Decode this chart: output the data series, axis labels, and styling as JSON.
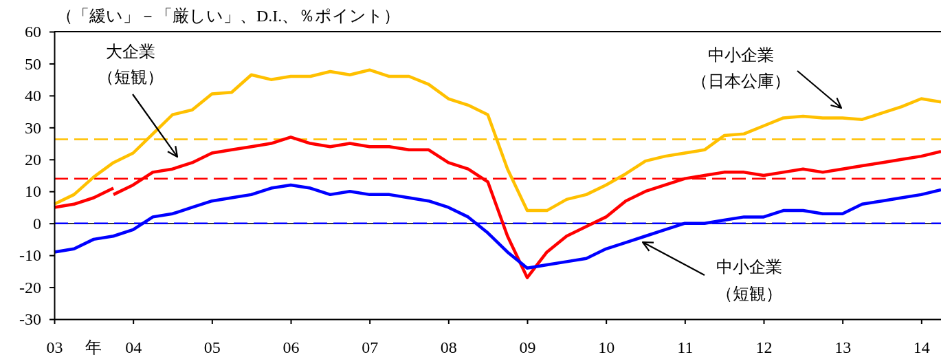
{
  "chart_data": {
    "type": "line",
    "ylabel": "（「緩い」－「厳しい」、D.I.、％ポイント）",
    "xlabel": "年",
    "xlim": [
      2003,
      2014.25
    ],
    "xticks": [
      {
        "value": 2003,
        "label": "03"
      },
      {
        "value": 2004,
        "label": "04"
      },
      {
        "value": 2005,
        "label": "05"
      },
      {
        "value": 2006,
        "label": "06"
      },
      {
        "value": 2007,
        "label": "07"
      },
      {
        "value": 2008,
        "label": "08"
      },
      {
        "value": 2009,
        "label": "09"
      },
      {
        "value": 2010,
        "label": "10"
      },
      {
        "value": 2011,
        "label": "11"
      },
      {
        "value": 2012,
        "label": "12"
      },
      {
        "value": 2013,
        "label": "13"
      },
      {
        "value": 2014,
        "label": "14"
      }
    ],
    "ylim": [
      -30,
      60
    ],
    "yticks": [
      -30,
      -20,
      -10,
      0,
      10,
      20,
      30,
      40,
      50,
      60
    ],
    "line_style": "solid",
    "x": [
      2003,
      2003.25,
      2003.5,
      2003.75,
      2004,
      2004.25,
      2004.5,
      2004.75,
      2005,
      2005.25,
      2005.5,
      2005.75,
      2006,
      2006.25,
      2006.5,
      2006.75,
      2007,
      2007.25,
      2007.5,
      2007.75,
      2008,
      2008.25,
      2008.5,
      2008.75,
      2009,
      2009.25,
      2009.5,
      2009.75,
      2010,
      2010.25,
      2010.5,
      2010.75,
      2011,
      2011.25,
      2011.5,
      2011.75,
      2012,
      2012.25,
      2012.5,
      2012.75,
      2013,
      2013.25,
      2013.5,
      2013.75,
      2014,
      2014.25
    ],
    "series": [
      {
        "name": "中小企業（日本公庫）",
        "color": "#ffc000",
        "values": [
          6,
          9,
          14.5,
          19,
          22,
          28,
          34,
          35.5,
          40.5,
          41,
          46.5,
          45,
          46,
          46,
          47.5,
          46.5,
          48,
          46,
          46,
          43.5,
          39,
          37,
          34,
          17,
          4,
          4,
          7.5,
          9,
          12,
          15.5,
          19.5,
          21,
          22,
          23,
          27.5,
          28,
          30.5,
          33,
          33.5,
          33,
          33,
          32.5,
          34.5,
          36.5,
          39,
          38
        ]
      },
      {
        "name": "大企業（短観）",
        "color": "#ff0000",
        "x": [
          2003.75,
          2004,
          2004.25,
          2004.5,
          2004.75,
          2005,
          2005.25,
          2005.5,
          2005.75,
          2006,
          2006.25,
          2006.5,
          2006.75,
          2007,
          2007.25,
          2007.5,
          2007.75,
          2008,
          2008.25,
          2008.5,
          2008.75,
          2009,
          2009.25,
          2009.5,
          2009.75,
          2010,
          2010.25,
          2010.5,
          2010.75,
          2011,
          2011.25,
          2011.5,
          2011.75,
          2012,
          2012.25,
          2012.5,
          2012.75,
          2013,
          2013.25,
          2013.5,
          2013.75,
          2014,
          2014.25
        ],
        "values": [
          9,
          12,
          16,
          17,
          19,
          22,
          23,
          24,
          25,
          27,
          25,
          24,
          25,
          24,
          24,
          23,
          23,
          19,
          17,
          13,
          -4,
          -17,
          -9,
          -4,
          -1,
          2,
          7,
          10,
          12,
          14,
          15,
          16,
          16,
          15,
          16,
          17,
          16,
          17,
          18,
          19,
          20,
          21,
          22.5
        ]
      },
      {
        "name": "中小企業（短観）",
        "color": "#0000ff",
        "values": [
          -9,
          -8,
          -5,
          -4,
          -2,
          2,
          3,
          5,
          7,
          8,
          9,
          11,
          12,
          11,
          9,
          10,
          9,
          9,
          8,
          7,
          5,
          2,
          -3,
          -9,
          -14,
          -13,
          -12,
          -11,
          -8,
          -6,
          -4,
          -2,
          0,
          0,
          1,
          2,
          2,
          4,
          4,
          3,
          3,
          6,
          7,
          8,
          9,
          10.5
        ]
      },
      {
        "color": "#ff0000",
        "x": [
          2003,
          2003.25,
          2003.5,
          2003.75
        ],
        "values": [
          5,
          6,
          8,
          11
        ]
      }
    ],
    "ref_lines": [
      {
        "axis": "y",
        "value": 26.3,
        "color": "#ffc000",
        "line_style": "dashed"
      },
      {
        "axis": "y",
        "value": 14,
        "color": "#ff0000",
        "line_style": "dashed"
      },
      {
        "axis": "y",
        "value": 0,
        "color": "#000000",
        "line_style": "solid"
      },
      {
        "axis": "y",
        "value": 0,
        "color": "#0000ff",
        "line_style": "dashed"
      }
    ]
  }
}
